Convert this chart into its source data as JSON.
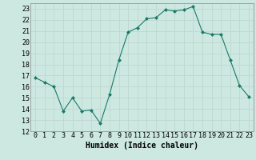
{
  "x": [
    0,
    1,
    2,
    3,
    4,
    5,
    6,
    7,
    8,
    9,
    10,
    11,
    12,
    13,
    14,
    15,
    16,
    17,
    18,
    19,
    20,
    21,
    22,
    23
  ],
  "y": [
    16.8,
    16.4,
    16.0,
    13.8,
    15.0,
    13.8,
    13.9,
    12.7,
    15.3,
    18.4,
    20.9,
    21.3,
    22.1,
    22.2,
    22.9,
    22.8,
    22.9,
    23.2,
    20.9,
    20.7,
    20.7,
    18.4,
    16.1,
    15.1
  ],
  "line_color": "#1a7a6a",
  "marker": "D",
  "marker_size": 2.0,
  "xlabel": "Humidex (Indice chaleur)",
  "ylim": [
    12,
    23.5
  ],
  "xlim": [
    -0.5,
    23.5
  ],
  "yticks": [
    12,
    13,
    14,
    15,
    16,
    17,
    18,
    19,
    20,
    21,
    22,
    23
  ],
  "xticks": [
    0,
    1,
    2,
    3,
    4,
    5,
    6,
    7,
    8,
    9,
    10,
    11,
    12,
    13,
    14,
    15,
    16,
    17,
    18,
    19,
    20,
    21,
    22,
    23
  ],
  "grid_color": "#c0d8d0",
  "bg_color": "#cce8e0",
  "xlabel_fontsize": 7,
  "tick_fontsize": 6,
  "linewidth": 0.8
}
